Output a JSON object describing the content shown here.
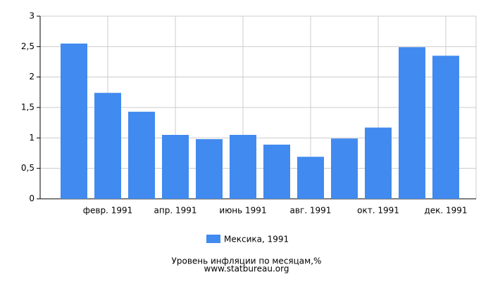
{
  "chart_data": {
    "type": "bar",
    "title": "Уровень инфляции по месяцам,%",
    "source": "www.statbureau.org",
    "categories": [
      null,
      "февр. 1991",
      null,
      "апр. 1991",
      null,
      "июнь 1991",
      null,
      "авг. 1991",
      null,
      "окт. 1991",
      null,
      "дек. 1991"
    ],
    "series": [
      {
        "name": "Мексика, 1991",
        "color": "#418af0",
        "values": [
          2.55,
          1.74,
          1.43,
          1.05,
          0.98,
          1.05,
          0.89,
          0.69,
          0.99,
          1.17,
          2.49,
          2.35
        ]
      }
    ],
    "ylim": [
      0,
      3
    ],
    "yticks": [
      0,
      {
        "value": 0.5,
        "label": "0,5"
      },
      1,
      {
        "value": 1.5,
        "label": "1,5"
      },
      2,
      {
        "value": 2.5,
        "label": "2,5"
      },
      3
    ],
    "grid": true
  }
}
